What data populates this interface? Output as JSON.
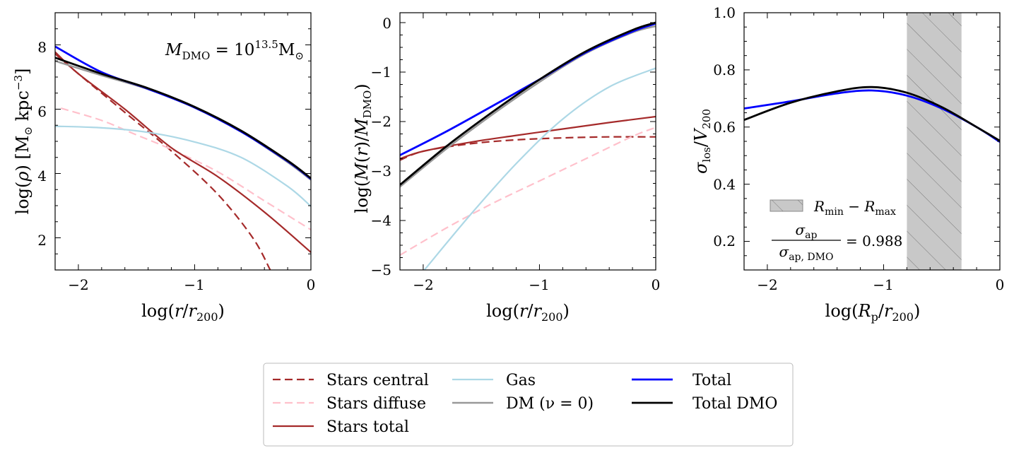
{
  "chart_data": [
    {
      "type": "line",
      "panel": "density",
      "xlabel": "log(r/r200)",
      "ylabel": "log(ρ) [M⊙ kpc⁻³]",
      "xlim": [
        -2.2,
        0
      ],
      "ylim": [
        1,
        9
      ],
      "xticks": [
        -2,
        -1,
        0
      ],
      "xtick_labels": [
        "−2",
        "−1",
        "0"
      ],
      "yticks": [
        2,
        4,
        6,
        8
      ],
      "ytick_labels": [
        "2",
        "4",
        "6",
        "8"
      ],
      "annotation": {
        "lhs": "M",
        "lhs_sub": "DMO",
        "eq": " = 10",
        "exp": "13.5",
        "unit": "M",
        "unit_sub": "⊙"
      },
      "series": [
        {
          "name": "Stars central",
          "color": "#a52a2a",
          "dash": true,
          "width": 2.2,
          "x": [
            -2.2,
            -2.0,
            -1.6,
            -1.2,
            -0.8,
            -0.5,
            -0.35
          ],
          "y": [
            7.72,
            7.1,
            5.9,
            4.7,
            3.35,
            2.0,
            1.0
          ]
        },
        {
          "name": "Stars diffuse",
          "color": "#ffc0cb",
          "dash": true,
          "width": 2.2,
          "x": [
            -2.15,
            -1.8,
            -1.5,
            -1.2,
            -0.8,
            -0.4,
            0
          ],
          "y": [
            6.03,
            5.65,
            5.2,
            4.75,
            4.05,
            3.15,
            2.25
          ]
        },
        {
          "name": "Stars total",
          "color": "#a52a2a",
          "dash": false,
          "width": 2.2,
          "x": [
            -2.2,
            -2.0,
            -1.6,
            -1.2,
            -0.8,
            -0.4,
            0
          ],
          "y": [
            7.78,
            7.1,
            6.0,
            4.8,
            3.9,
            2.8,
            1.55
          ]
        },
        {
          "name": "Gas",
          "color": "#add8e6",
          "dash": false,
          "width": 2.2,
          "x": [
            -2.2,
            -1.8,
            -1.4,
            -1.0,
            -0.6,
            -0.2,
            0
          ],
          "y": [
            5.47,
            5.42,
            5.28,
            4.98,
            4.5,
            3.6,
            2.98
          ]
        },
        {
          "name": "DM (ν=0)",
          "color": "#999999",
          "dash": false,
          "width": 2.5,
          "x": [
            -2.2,
            -1.8,
            -1.4,
            -1.0,
            -0.6,
            -0.2,
            0
          ],
          "y": [
            7.5,
            7.05,
            6.62,
            6.05,
            5.3,
            4.35,
            3.8
          ]
        },
        {
          "name": "Total",
          "color": "#0000ff",
          "dash": false,
          "width": 2.8,
          "x": [
            -2.2,
            -1.8,
            -1.4,
            -1.0,
            -0.6,
            -0.2,
            0
          ],
          "y": [
            7.95,
            7.15,
            6.63,
            6.05,
            5.3,
            4.38,
            3.83
          ]
        },
        {
          "name": "Total DMO",
          "color": "#000000",
          "dash": false,
          "width": 2.8,
          "x": [
            -2.2,
            -1.8,
            -1.4,
            -1.0,
            -0.6,
            -0.2,
            0
          ],
          "y": [
            7.6,
            7.1,
            6.65,
            6.07,
            5.33,
            4.4,
            3.85
          ]
        }
      ]
    },
    {
      "type": "line",
      "panel": "mass",
      "xlabel": "log(r/r200)",
      "ylabel": "log(M(r)/MDMO)",
      "xlim": [
        -2.2,
        0
      ],
      "ylim": [
        -5,
        0.2
      ],
      "xticks": [
        -2,
        -1,
        0
      ],
      "xtick_labels": [
        "−2",
        "−1",
        "0"
      ],
      "yticks": [
        -5,
        -4,
        -3,
        -2,
        -1,
        0
      ],
      "ytick_labels": [
        "−5",
        "−4",
        "−3",
        "−2",
        "−1",
        "0"
      ],
      "series": [
        {
          "name": "Stars central",
          "color": "#a52a2a",
          "dash": true,
          "width": 2.2,
          "x": [
            -2.2,
            -2.0,
            -1.6,
            -1.2,
            -0.8,
            -0.4,
            0
          ],
          "y": [
            -2.78,
            -2.6,
            -2.45,
            -2.37,
            -2.33,
            -2.31,
            -2.31
          ]
        },
        {
          "name": "Stars diffuse",
          "color": "#ffc0cb",
          "dash": true,
          "width": 2.2,
          "x": [
            -2.2,
            -1.8,
            -1.4,
            -1.0,
            -0.6,
            -0.2,
            0
          ],
          "y": [
            -4.7,
            -4.15,
            -3.65,
            -3.2,
            -2.75,
            -2.3,
            -2.12
          ]
        },
        {
          "name": "Stars total",
          "color": "#a52a2a",
          "dash": false,
          "width": 2.2,
          "x": [
            -2.2,
            -2.0,
            -1.6,
            -1.2,
            -0.8,
            -0.4,
            0
          ],
          "y": [
            -2.75,
            -2.6,
            -2.42,
            -2.28,
            -2.15,
            -2.02,
            -1.9
          ]
        },
        {
          "name": "Gas",
          "color": "#add8e6",
          "dash": false,
          "width": 2.2,
          "x": [
            -1.99,
            -1.6,
            -1.2,
            -0.8,
            -0.4,
            0
          ],
          "y": [
            -5.0,
            -3.9,
            -2.85,
            -1.95,
            -1.3,
            -0.92
          ]
        },
        {
          "name": "DM (ν=0)",
          "color": "#999999",
          "dash": false,
          "width": 2.5,
          "x": [
            -2.2,
            -1.8,
            -1.4,
            -1.0,
            -0.6,
            -0.2,
            0
          ],
          "y": [
            -3.32,
            -2.55,
            -1.85,
            -1.2,
            -0.62,
            -0.2,
            -0.07
          ]
        },
        {
          "name": "Total",
          "color": "#0000ff",
          "dash": false,
          "width": 2.8,
          "x": [
            -2.2,
            -1.8,
            -1.4,
            -1.0,
            -0.6,
            -0.2,
            0
          ],
          "y": [
            -2.68,
            -2.2,
            -1.68,
            -1.15,
            -0.6,
            -0.18,
            -0.02
          ]
        },
        {
          "name": "Total DMO",
          "color": "#000000",
          "dash": false,
          "width": 2.8,
          "x": [
            -2.2,
            -1.8,
            -1.4,
            -1.0,
            -0.6,
            -0.2,
            0
          ],
          "y": [
            -3.28,
            -2.5,
            -1.8,
            -1.15,
            -0.58,
            -0.15,
            0.0
          ]
        }
      ]
    },
    {
      "type": "line",
      "panel": "dispersion",
      "xlabel": "log(Rp/r200)",
      "ylabel": "σlos/V200",
      "xlim": [
        -2.2,
        0
      ],
      "ylim": [
        0.1,
        1.0
      ],
      "xticks": [
        -2,
        -1,
        0
      ],
      "xtick_labels": [
        "−2",
        "−1",
        "0"
      ],
      "yticks": [
        0.2,
        0.4,
        0.6,
        0.8,
        1.0
      ],
      "ytick_labels": [
        "0.2",
        "0.4",
        "0.6",
        "0.8",
        "1.0"
      ],
      "aperture": {
        "x0": -0.8,
        "x1": -0.33,
        "label": "Rmin − Rmax",
        "label_a": "R",
        "sub_a": "min",
        "dash": " − ",
        "label_b": "R",
        "sub_b": "max"
      },
      "ratio": {
        "num": "σ",
        "num_sub": "ap",
        "den": "σ",
        "den_sub": "ap, DMO",
        "value": "= 0.988"
      },
      "series": [
        {
          "name": "Total",
          "color": "#0000ff",
          "dash": false,
          "width": 2.8,
          "x": [
            -2.2,
            -1.8,
            -1.4,
            -1.1,
            -0.8,
            -0.5,
            -0.2,
            0
          ],
          "y": [
            0.665,
            0.69,
            0.718,
            0.728,
            0.71,
            0.665,
            0.6,
            0.548
          ]
        },
        {
          "name": "Total DMO",
          "color": "#000000",
          "dash": false,
          "width": 2.8,
          "x": [
            -2.2,
            -1.8,
            -1.4,
            -1.1,
            -0.8,
            -0.5,
            -0.2,
            0
          ],
          "y": [
            0.625,
            0.685,
            0.725,
            0.74,
            0.72,
            0.67,
            0.6,
            0.552
          ]
        }
      ]
    }
  ],
  "legend": {
    "items": [
      {
        "label": "Stars central",
        "color": "#a52a2a",
        "dash": true,
        "width": 2.2
      },
      {
        "label": "Stars diffuse",
        "color": "#ffc0cb",
        "dash": true,
        "width": 2.2
      },
      {
        "label": "Stars total",
        "color": "#a52a2a",
        "dash": false,
        "width": 2.2
      },
      {
        "label": "Gas",
        "color": "#add8e6",
        "dash": false,
        "width": 2.2
      },
      {
        "label": "DM (ν = 0)",
        "color": "#999999",
        "dash": false,
        "width": 2.5
      },
      {
        "label": "Total",
        "color": "#0000ff",
        "dash": false,
        "width": 2.8
      },
      {
        "label": "Total DMO",
        "color": "#000000",
        "dash": false,
        "width": 2.8
      }
    ]
  }
}
